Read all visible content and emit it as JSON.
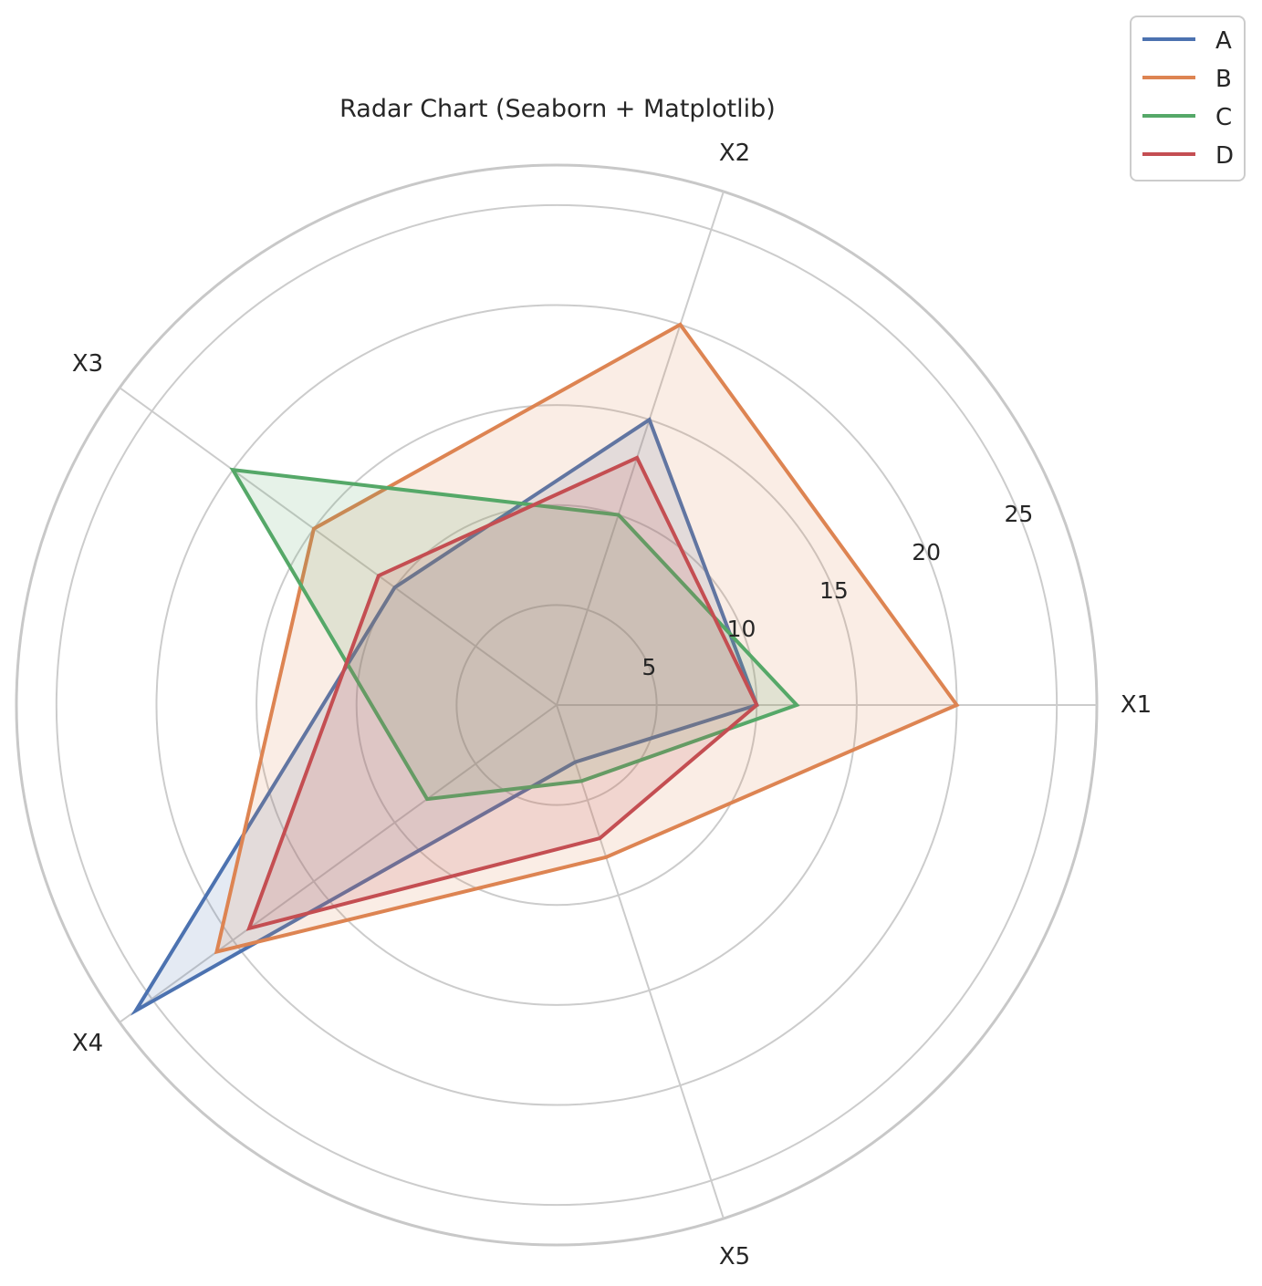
{
  "chart_data": {
    "type": "radar",
    "title": "Radar Chart (Seaborn + Matplotlib)",
    "categories": [
      "X1",
      "X2",
      "X3",
      "X4",
      "X5"
    ],
    "rlim": [
      0,
      27
    ],
    "rticks": [
      5,
      10,
      15,
      20,
      25
    ],
    "grid": true,
    "legend_position": "top-right",
    "series": [
      {
        "name": "A",
        "color": "#4c72b0",
        "values": [
          10,
          15,
          10,
          26,
          3
        ]
      },
      {
        "name": "B",
        "color": "#dd8452",
        "values": [
          20,
          20,
          15,
          21,
          8
        ]
      },
      {
        "name": "C",
        "color": "#55a868",
        "values": [
          12,
          10,
          20,
          8,
          4
        ]
      },
      {
        "name": "D",
        "color": "#c44e52",
        "values": [
          10,
          13,
          11,
          19,
          7
        ]
      }
    ]
  }
}
